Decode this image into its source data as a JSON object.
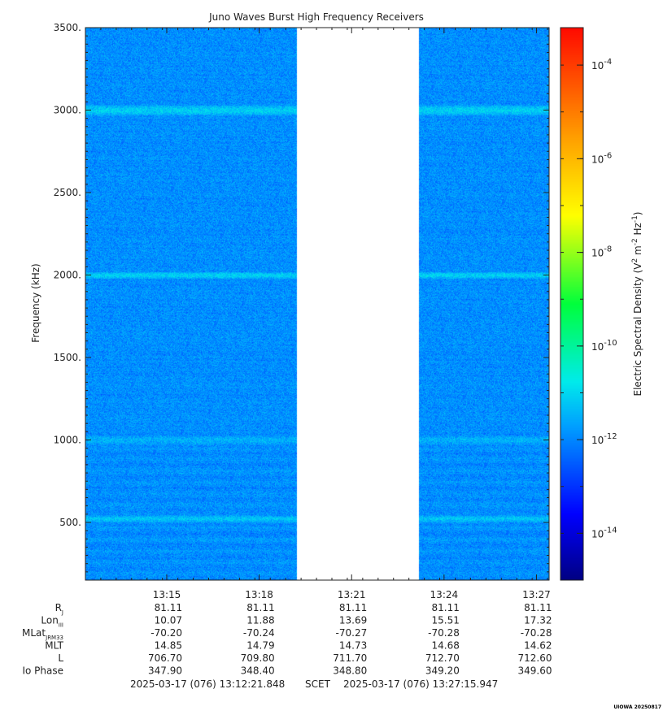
{
  "chart_data": {
    "type": "heatmap",
    "title": "Juno Waves Burst High Frequency Receivers",
    "ylabel": "Frequency (kHz)",
    "ylim": [
      150,
      3500
    ],
    "yticks": [
      500,
      1000,
      1500,
      2000,
      2500,
      3000,
      3500
    ],
    "ytick_labels": [
      "500.",
      "1000.",
      "1500.",
      "2000.",
      "2500.",
      "3000.",
      "3500."
    ],
    "y_minor_step": 50,
    "xlim_minutes": [
      0,
      15.05
    ],
    "x_minor_step_minutes": 0.5,
    "xticks": [
      {
        "label": "13:15",
        "t": 2.64
      },
      {
        "label": "13:18",
        "t": 5.64
      },
      {
        "label": "13:21",
        "t": 8.64
      },
      {
        "label": "13:24",
        "t": 11.64
      },
      {
        "label": "13:27",
        "t": 14.64
      }
    ],
    "data_gap_minutes": [
      6.86,
      10.82
    ],
    "background_log10_density": -11.9,
    "emission_bands_khz": [
      {
        "freq": 3000,
        "log10_density": -11.1,
        "width_khz": 30
      },
      {
        "freq": 2000,
        "log10_density": -11.1,
        "width_khz": 20
      },
      {
        "freq": 1000,
        "log10_density": -11.5,
        "width_khz": 35
      },
      {
        "freq": 520,
        "log10_density": -11.3,
        "width_khz": 25
      }
    ],
    "colorbar": {
      "label": "Electric Spectral Density (V",
      "label_exp_a": "2",
      "label_mid": " m",
      "label_exp_b": "-2",
      "label_mid2": " Hz",
      "label_exp_c": "-1",
      "label_end": ")",
      "range_log10": [
        -15,
        -3.2
      ],
      "ticks": [
        {
          "base": "10",
          "exp": "-4",
          "value": -4
        },
        {
          "base": "10",
          "exp": "-6",
          "value": -6
        },
        {
          "base": "10",
          "exp": "-8",
          "value": -8
        },
        {
          "base": "10",
          "exp": "-10",
          "value": -10
        },
        {
          "base": "10",
          "exp": "-12",
          "value": -12
        },
        {
          "base": "10",
          "exp": "-14",
          "value": -14
        }
      ]
    },
    "ephemeris": {
      "rows": [
        {
          "label": "R",
          "sub": "J",
          "values": [
            "81.11",
            "81.11",
            "81.11",
            "81.11",
            "81.11"
          ]
        },
        {
          "label": "Lon",
          "sub": "III",
          "values": [
            "10.07",
            "11.88",
            "13.69",
            "15.51",
            "17.32"
          ]
        },
        {
          "label": "MLat",
          "sub": "JRM33",
          "values": [
            "-70.20",
            "-70.24",
            "-70.27",
            "-70.28",
            "-70.28"
          ]
        },
        {
          "label": "MLT",
          "sub": "",
          "values": [
            "14.85",
            "14.79",
            "14.73",
            "14.68",
            "14.62"
          ]
        },
        {
          "label": "L",
          "sub": "",
          "values": [
            "706.70",
            "709.80",
            "711.70",
            "712.70",
            "712.60"
          ]
        },
        {
          "label": "Io Phase",
          "sub": "",
          "values": [
            "347.90",
            "348.40",
            "348.80",
            "349.20",
            "349.60"
          ]
        }
      ]
    },
    "time_range": {
      "start": "2025-03-17 (076) 13:12:21.848",
      "scet": "SCET",
      "end": "2025-03-17 (076) 13:27:15.947"
    },
    "stamp": "UIOWA 20250817"
  }
}
